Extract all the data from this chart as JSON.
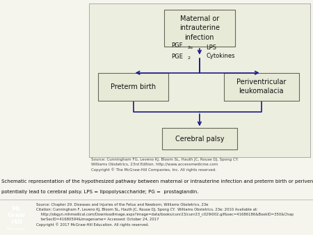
{
  "fig_bg": "#f5f5ee",
  "diagram_bg": "#eceee0",
  "box_bg": "#e8ead8",
  "box_edge": "#666655",
  "arrow_color": "#1a1a88",
  "text_color": "#111111",
  "infection_label": "Maternal or\nintrauterine\ninfection",
  "preterm_label": "Preterm birth",
  "perivent_label": "Periventricular\nleukomalacia",
  "cerebral_label": "Cerebral palsy",
  "label_lps": "LPS\nCytokines",
  "label_pgf2a": "PGF",
  "label_pgf2a_sub": "2α",
  "label_pge2": "PGE",
  "label_pge2_sub": "2",
  "source_text": "Source: Cunningham FG, Leveno KJ, Bloom SL, Hauth JC, Rouse DJ, Spong CY:\nWilliams Obstetrics, 23rd Edition. http://www.accessmedicine.com\nCopyright © The McGraw-Hill Companies, Inc. All rights reserved.",
  "caption_line1": "Schematic representation of the hypothesized pathway between maternal or intrauterine infection and preterm birth or periventricular leukomalacia. Both",
  "caption_line2": "potentially lead to cerebral palsy. LPS = lipopolysaccharide; PG =  prostaglandin.",
  "mcgraw_src": "Source: Chapter 29. Diseases and Injuries of the Fetus and Newborn, Williams Obstetrics, 23e",
  "mcgraw_cite1": "Citation: Cunningham F, Leveno KJ, Bloom SL, Hauth JC, Rouse DJ, Spong CY.  Williams Obstetrics, 23e; 2010 Available at:",
  "mcgraw_cite2": "    http://obgyn.mhmedical.com/DownloadImage.aspx?image=data/books/cunr23/cunr23_c029i002.gif&sec=41686186&BookID=350&Chap",
  "mcgraw_cite3": "    terSecID=41680594&imagename= Accessed: October 24, 2017",
  "mcgraw_copy": "Copyright © 2017 McGraw-Hill Education. All rights reserved.",
  "logo_lines": [
    "Mc",
    "Graw",
    "Hill",
    "Education"
  ],
  "logo_color": "#c0392b"
}
